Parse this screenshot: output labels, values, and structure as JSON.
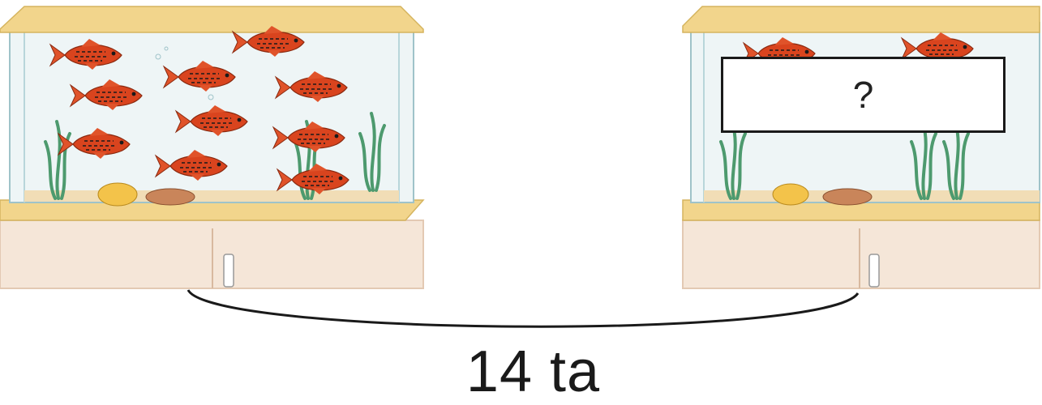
{
  "question_box": {
    "text": "?"
  },
  "total_label": {
    "text": "14 ta"
  },
  "left_tank": {
    "fish_count": 10
  },
  "right_tank": {
    "fish_count_visible": 2
  },
  "colors": {
    "frame": "#f2d58c",
    "cabinet": "#f5e6d8",
    "water": "#eef5f6",
    "fish": "#d9441e",
    "weed": "#4d9a6e",
    "watermark": "#f6a24a"
  }
}
